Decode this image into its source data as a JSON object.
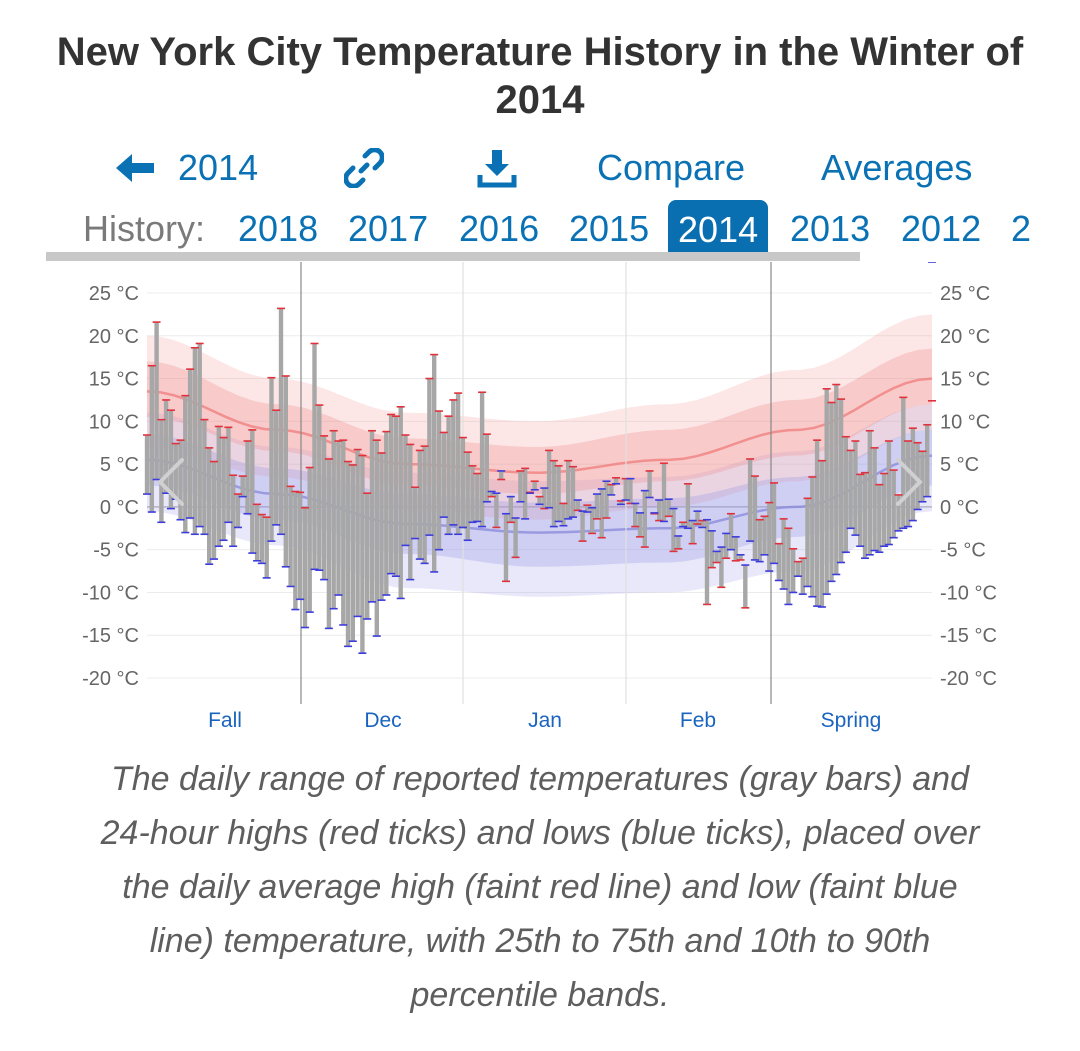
{
  "title": "New York City Temperature History in the Winter of 2014",
  "nav": {
    "back_label": "2014",
    "compare_label": "Compare",
    "averages_label": "Averages",
    "link_icon": "link-icon",
    "download_icon": "download-icon"
  },
  "history": {
    "label": "History:",
    "years": [
      "2018",
      "2017",
      "2016",
      "2015",
      "2014",
      "2013",
      "2012",
      "2"
    ],
    "active": "2014"
  },
  "colors": {
    "accent": "#0a72b4",
    "high_tick": "#e0323c",
    "low_tick": "#3c3cdc",
    "bar": "#a7a7a7",
    "avg_high": "#f08080",
    "avg_low": "#8c8cdc"
  },
  "chart_data": {
    "type": "bar",
    "title": "New York City Temperature History in the Winter of 2014",
    "ylim": [
      -20,
      25
    ],
    "y_ticks": [
      "25 °C",
      "20 °C",
      "15 °C",
      "10 °C",
      "5 °C",
      "0 °C",
      "-5 °C",
      "-10 °C",
      "-15 °C",
      "-20 °C"
    ],
    "x_labels": [
      "Fall",
      "Dec",
      "Jan",
      "Feb",
      "Spring"
    ],
    "bands_x": [
      0,
      25,
      50,
      75,
      100,
      125,
      151
    ],
    "avg_high": [
      13.5,
      9,
      5,
      4,
      5.5,
      9,
      15
    ],
    "avg_low": [
      5.5,
      1.5,
      -2,
      -3,
      -2.5,
      0,
      6
    ],
    "high_p25": [
      10.5,
      6.5,
      2.5,
      1.5,
      3,
      6,
      12
    ],
    "high_p75": [
      17,
      12,
      8,
      7,
      9,
      12.5,
      18.5
    ],
    "high_p10": [
      7,
      3.5,
      -0.5,
      -1.5,
      0,
      3,
      9
    ],
    "high_p90": [
      20,
      15,
      11,
      10,
      12,
      16,
      22.5
    ],
    "low_p25": [
      2.5,
      -1.5,
      -5.5,
      -7,
      -6.5,
      -3.5,
      2.5
    ],
    "low_p75": [
      8.5,
      4.5,
      1.5,
      0.5,
      1,
      3.5,
      9
    ],
    "low_p10": [
      -0.5,
      -4.5,
      -9.5,
      -10.5,
      -10,
      -7.5,
      -0.5
    ],
    "low_p90": [
      11,
      7,
      4,
      3,
      3.5,
      6.5,
      12
    ],
    "daily_high": [
      8.4,
      16.5,
      21.6,
      10.2,
      12.5,
      11.3,
      7.4,
      7.8,
      13.0,
      16.1,
      18.6,
      19.1,
      10.2,
      6.9,
      5.3,
      9.4,
      8.1,
      9.3,
      3.7,
      1.5,
      3.6,
      7.7,
      9.0,
      0.3,
      -0.9,
      -1.2,
      15.1,
      11.3,
      23.2,
      15.3,
      2.4,
      1.8,
      1.7,
      -0.1,
      4.6,
      19.1,
      11.9,
      8.3,
      5.6,
      8.9,
      7.7,
      7.8,
      5.3,
      4.9,
      6.7,
      6.0,
      1.6,
      8.9,
      7.8,
      6.3,
      8.8,
      10.8,
      10.6,
      11.7,
      8.4,
      7.3,
      2.3,
      6.6,
      7.1,
      15.0,
      17.8,
      11.2,
      8.7,
      10.6,
      12.5,
      13.3,
      8.1,
      6.4,
      4.8,
      3.9,
      13.4,
      8.5,
      1.2,
      -2.4,
      3.2,
      -8.7,
      -1.8,
      -5.9,
      4.2,
      4.5,
      1.7,
      3.0,
      1.2,
      -0.2,
      6.6,
      5.4,
      4.8,
      0.4,
      5.4,
      4.7,
      -0.4,
      -4.0,
      0.2,
      -3.1,
      -1.4,
      -3.6,
      -1.3,
      2.6,
      3.4,
      0.7,
      3.3,
      0.4,
      -2.3,
      -3.5,
      -4.7,
      4.2,
      -0.8,
      -1.6,
      5.1,
      -1.1,
      -5.2,
      -4.9,
      -1.8,
      2.7,
      -4.3,
      -2.0,
      -1.6,
      -11.4,
      -7.1,
      -6.5,
      -9.4,
      -6.0,
      -0.8,
      -6.3,
      -6.2,
      -11.8,
      5.6,
      3.6,
      -1.5,
      -1.1,
      0.5,
      2.8,
      -4.3,
      -1.4,
      -2.5,
      -4.9,
      -6.4,
      -6.0,
      1.0,
      3.5,
      7.8,
      5.4,
      13.8,
      12.2,
      14.3,
      12.6,
      8.2,
      6.6,
      7.7,
      3.8,
      4.0,
      8.9,
      6.9,
      2.6,
      3.9,
      7.7,
      4.3,
      1.4,
      12.8,
      7.7,
      9.2,
      7.5,
      6.5,
      9.6,
      12.4
    ],
    "daily_low": [
      1.5,
      -0.6,
      3.2,
      -1.8,
      1.6,
      -0.2,
      0.9,
      -1.5,
      -3.0,
      -1.3,
      -3.2,
      -2.3,
      -3.2,
      -6.7,
      -6.1,
      -4.6,
      -3.9,
      -1.8,
      -4.6,
      -2.4,
      1.2,
      -0.8,
      -5.4,
      -6.3,
      -6.6,
      -8.3,
      -4.0,
      -2.1,
      -3.2,
      -7.0,
      -9.3,
      -12.0,
      -10.8,
      -14.1,
      -12.3,
      -7.3,
      -7.4,
      -8.5,
      -14.2,
      -11.9,
      -10.3,
      -13.8,
      -16.3,
      -15.7,
      -12.8,
      -17.1,
      -13.1,
      -11.1,
      -15.1,
      -10.9,
      -10.3,
      -7.8,
      -8.1,
      -10.7,
      -4.5,
      -8.5,
      -3.7,
      -6.1,
      -6.6,
      -3.3,
      -7.6,
      -5.0,
      -1.2,
      -3.2,
      -2.1,
      -3.2,
      -2.4,
      -3.9,
      -1.8,
      -1.7,
      -2.3,
      0.6,
      1.8,
      1.6,
      4.2,
      -0.8,
      1.2,
      -1.3,
      0.6,
      -1.4,
      1.6,
      2.0,
      0.3,
      2.2,
      -0.1,
      -2.3,
      -1.7,
      -2.2,
      -1.4,
      -1.2,
      0.8,
      -0.5,
      -0.6,
      -0.1,
      1.5,
      2.1,
      3.0,
      1.4,
      2.7,
      0.3,
      0.8,
      3.3,
      0.4,
      -0.7,
      1.9,
      1.1,
      -0.7,
      0.8,
      -1.7,
      0.9,
      -0.2,
      -3.4,
      -2.3,
      -2.5,
      -1.6,
      -0.5,
      -2.4,
      -1.5,
      -2.8,
      -5.2,
      -4.7,
      -3.1,
      -5.0,
      -3.5,
      -5.6,
      -6.8,
      -4.0,
      -6.2,
      -6.4,
      -5.6,
      -7.5,
      -6.6,
      -8.6,
      -9.6,
      -11.4,
      -10.0,
      -8.1,
      -10.2,
      -9.3,
      -10.5,
      -11.6,
      -11.7,
      -10.2,
      -8.7,
      -7.9,
      -6.5,
      -5.3,
      -2.5,
      -3.3,
      -4.6,
      -6.0,
      -5.6,
      -5.1,
      -5.3,
      -4.6,
      -4.4,
      -3.6,
      -2.8,
      -2.5,
      -2.3,
      -1.6,
      -0.3,
      0.6,
      1.2
    ]
  },
  "caption": "The daily range of reported temperatures (gray bars) and 24-hour highs (red ticks) and lows (blue ticks), placed over the daily average high (faint red line) and low (faint blue line) temperature, with 25th to 75th and 10th to 90th percentile bands."
}
